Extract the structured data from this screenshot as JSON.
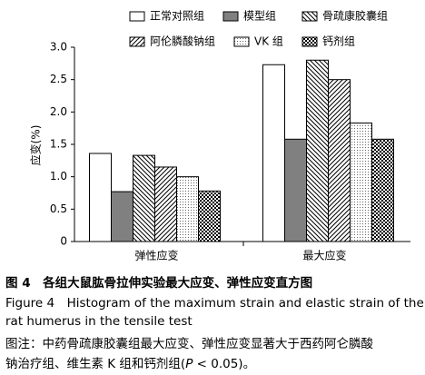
{
  "chart_data": {
    "type": "bar",
    "y_label": "应变(%)",
    "categories": [
      "弹性应变",
      "最大应变"
    ],
    "series": [
      {
        "name": "正常对照组",
        "color": "#ffffff",
        "pattern": "none",
        "values": [
          1.36,
          2.73
        ]
      },
      {
        "name": "模型组",
        "color": "#808080",
        "pattern": "none",
        "values": [
          0.77,
          1.58
        ]
      },
      {
        "name": "骨疏康胶囊组",
        "color": "#ffffff",
        "pattern": "hatch-back",
        "values": [
          1.33,
          2.8
        ]
      },
      {
        "name": "阿伦膦酸钠组",
        "color": "#ffffff",
        "pattern": "hatch-fwd",
        "values": [
          1.15,
          2.5
        ]
      },
      {
        "name": "VK 组",
        "color": "#ffffff",
        "pattern": "dots",
        "values": [
          1.0,
          1.83
        ]
      },
      {
        "name": "钙剂组",
        "color": "#ffffff",
        "pattern": "checker",
        "values": [
          0.78,
          1.58
        ]
      }
    ],
    "ylim": [
      0,
      3
    ],
    "yticks": [
      0,
      0.5,
      {
        "value": 1,
        "label": "1.0"
      },
      1.5,
      {
        "value": 2,
        "label": "2.0"
      },
      2.5,
      {
        "value": 3,
        "label": "3.0"
      }
    ],
    "legend": "top"
  },
  "caption": {
    "title": "图 4　各组大鼠肱骨拉伸实验最大应变、弹性应变直方图",
    "english": [
      "Figure 4　Histogram of the maximum strain and elastic strain of the",
      "rat humerus in the tensile test"
    ],
    "note": [
      "图注：中药骨疏康胶囊组最大应变、弹性应变显著大于西药阿仑膦酸",
      "钠治疗组、维生素 K 组和钙剂组(",
      "P",
      " < 0.05)。"
    ]
  }
}
